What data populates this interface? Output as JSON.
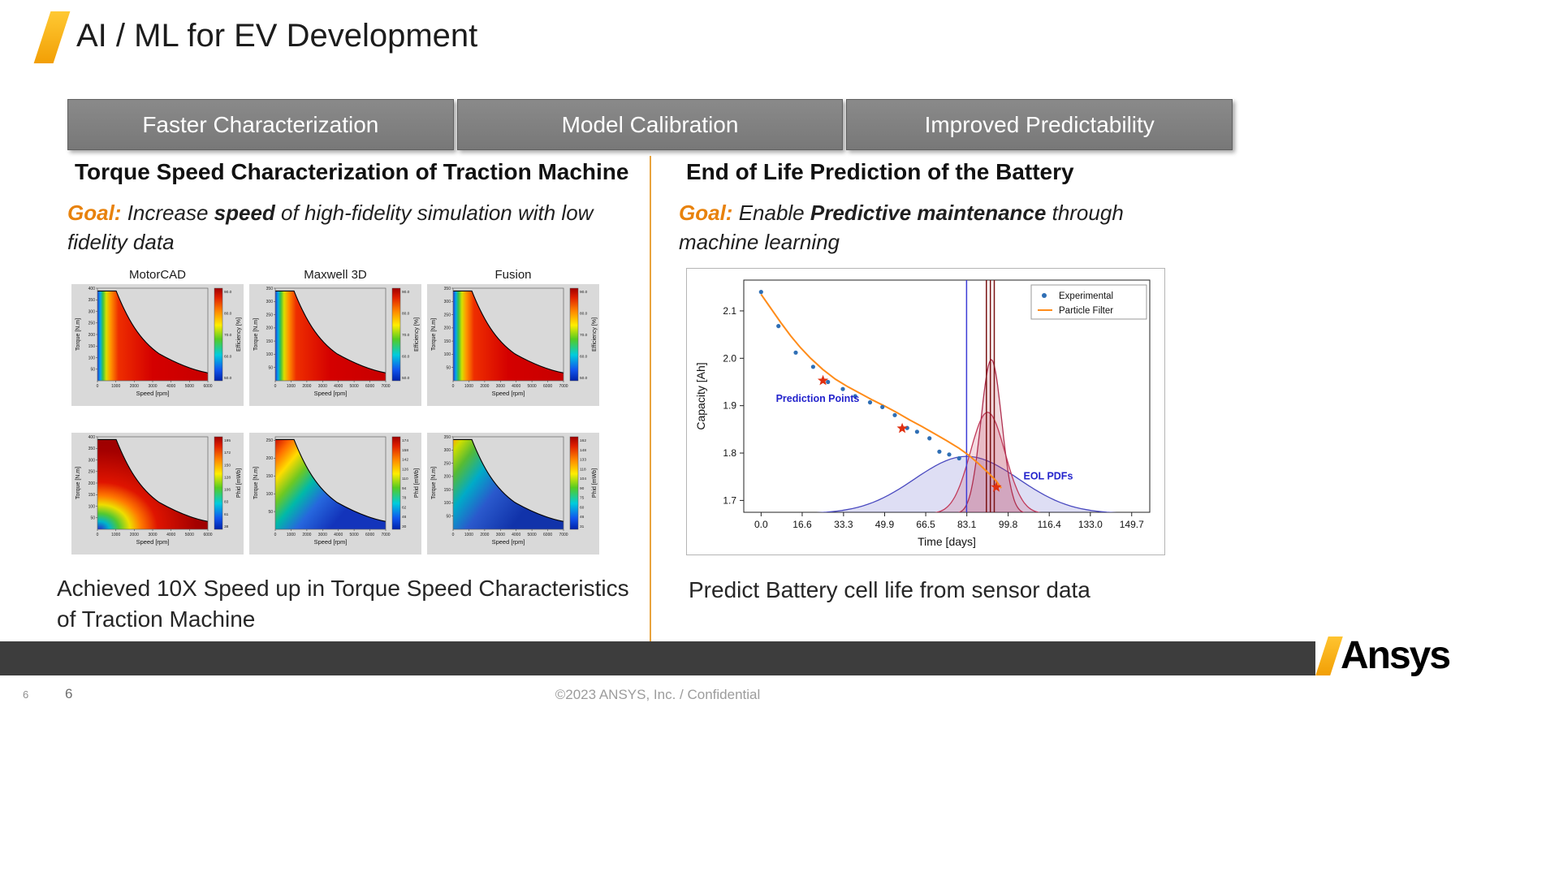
{
  "title": "AI / ML for EV Development",
  "tabs": [
    "Faster Characterization",
    "Model Calibration",
    "Improved Predictability"
  ],
  "left": {
    "heading": "Torque Speed Characterization of Traction Machine",
    "goal": {
      "label": "Goal:",
      "pre": "Increase",
      "emph": "speed",
      "post": "of high-fidelity simulation with low fidelity data"
    },
    "result": "Achieved 10X Speed up in Torque Speed Characteristics of Traction Machine"
  },
  "right": {
    "heading": "End of Life Prediction of the Battery",
    "goal": {
      "label": "Goal:",
      "pre": "Enable",
      "emph": "Predictive maintenance",
      "post": "through machine learning"
    },
    "result": "Predict Battery cell life from sensor data"
  },
  "footer": {
    "copyright": "©2023 ANSYS, Inc. / Confidential",
    "page_small": "6",
    "page_large": "6",
    "logo_text": "Ansys"
  },
  "accent_colors": {
    "ansys_gold": "#FFB71B",
    "goal_orange": "#E8820C",
    "tab_gray": "#7f7f7f",
    "footer_gray": "#3d3d3d"
  },
  "chart_data": [
    {
      "type": "line",
      "title": "",
      "xlabel": "Time [days]",
      "ylabel": "Capacity [Ah]",
      "xlim": [
        -7,
        157
      ],
      "ylim": [
        1.675,
        2.165
      ],
      "x_ticks": [
        "0.0",
        "16.6",
        "33.3",
        "49.9",
        "66.5",
        "83.1",
        "99.8",
        "116.4",
        "133.0",
        "149.7"
      ],
      "x_tick_values": [
        0,
        16.6,
        33.3,
        49.9,
        66.5,
        83.1,
        99.8,
        116.4,
        133.0,
        149.7
      ],
      "y_ticks": [
        "1.7",
        "1.8",
        "1.9",
        "2.0",
        "2.1"
      ],
      "y_tick_values": [
        1.7,
        1.8,
        1.9,
        2.0,
        2.1
      ],
      "grid": false,
      "legend_position": "upper right",
      "legend": [
        {
          "label": "Experimental",
          "marker": "dot",
          "color": "#2f6fb5"
        },
        {
          "label": "Particle Filter",
          "marker": "line",
          "color": "#ff8c1a"
        }
      ],
      "series": [
        {
          "name": "Experimental",
          "type": "scatter",
          "color": "#2f6fb5",
          "points": [
            [
              0,
              2.14
            ],
            [
              7,
              2.068
            ],
            [
              14,
              2.012
            ],
            [
              21,
              1.982
            ],
            [
              27,
              1.95
            ],
            [
              33,
              1.935
            ],
            [
              38,
              1.92
            ],
            [
              44,
              1.907
            ],
            [
              49,
              1.897
            ],
            [
              54,
              1.88
            ],
            [
              59,
              1.853
            ],
            [
              63,
              1.845
            ],
            [
              68,
              1.831
            ],
            [
              72,
              1.803
            ],
            [
              76,
              1.797
            ],
            [
              80,
              1.789
            ]
          ]
        },
        {
          "name": "Particle Filter",
          "type": "line",
          "color": "#ff8c1a",
          "points": [
            [
              0,
              2.135
            ],
            [
              4,
              2.105
            ],
            [
              8,
              2.075
            ],
            [
              12,
              2.047
            ],
            [
              16,
              2.022
            ],
            [
              20,
              2.0
            ],
            [
              25,
              1.976
            ],
            [
              30,
              1.956
            ],
            [
              35,
              1.94
            ],
            [
              40,
              1.926
            ],
            [
              45,
              1.912
            ],
            [
              50,
              1.899
            ],
            [
              55,
              1.885
            ],
            [
              60,
              1.87
            ],
            [
              65,
              1.856
            ],
            [
              70,
              1.841
            ],
            [
              75,
              1.826
            ],
            [
              80,
              1.81
            ],
            [
              84,
              1.795
            ],
            [
              88,
              1.777
            ],
            [
              92,
              1.757
            ],
            [
              95,
              1.741
            ],
            [
              97,
              1.726
            ]
          ]
        }
      ],
      "prediction_points": [
        [
          25,
          1.953
        ],
        [
          57,
          1.852
        ],
        [
          95,
          1.728
        ]
      ],
      "vlines": [
        {
          "x": 83,
          "color": "#3b3bd6",
          "width": 1.5
        },
        {
          "x": 91,
          "color": "#7a1212",
          "width": 1.5
        },
        {
          "x": 92.6,
          "color": "#7a1212",
          "width": 1.5
        },
        {
          "x": 94.2,
          "color": "#7a1212",
          "width": 1.5
        }
      ],
      "pdfs": [
        {
          "center": 83,
          "sigma": 21,
          "peak": 1.793,
          "base": 1.672,
          "color": "#4a4ac0"
        },
        {
          "center": 91.5,
          "sigma": 7,
          "peak": 1.886,
          "base": 1.672,
          "color": "#c23a5a"
        },
        {
          "center": 93,
          "sigma": 4.2,
          "peak": 1.997,
          "base": 1.672,
          "color": "#b03050"
        }
      ],
      "annotations": [
        {
          "text": "Prediction Points",
          "x": 6,
          "y": 1.908,
          "color": "#2323cc"
        },
        {
          "text": "EOL PDFs",
          "x": 106,
          "y": 1.744,
          "color": "#2323cc"
        }
      ]
    },
    {
      "type": "heatmap",
      "name": "torque-speed-maps",
      "xlabel": "Speed [rpm]",
      "ylabel": "Torque [N.m]",
      "plots": [
        {
          "title": "MotorCAD",
          "x_max": 6000,
          "x_step": 1000,
          "y_max": 400,
          "y_step": 50,
          "cb_label": "Efficiency [%]",
          "cb_ticks": [
            "90.0",
            "80.0",
            "70.0",
            "60.0",
            "50.0"
          ],
          "fill": "eff_left"
        },
        {
          "title": "Maxwell 3D",
          "x_max": 7000,
          "x_step": 1000,
          "y_max": 350,
          "y_step": 50,
          "cb_label": "Efficiency [%]",
          "cb_ticks": [
            "90.0",
            "80.0",
            "70.0",
            "60.0",
            "50.0"
          ],
          "fill": "eff_left"
        },
        {
          "title": "Fusion",
          "x_max": 7000,
          "x_step": 1000,
          "y_max": 350,
          "y_step": 50,
          "cb_label": "Efficiency [%]",
          "cb_ticks": [
            "90.0",
            "80.0",
            "70.0",
            "60.0",
            "50.0"
          ],
          "fill": "eff_left"
        },
        {
          "title": "",
          "x_max": 6000,
          "x_step": 1000,
          "y_max": 400,
          "y_step": 50,
          "cb_label": "Phid [mWb]",
          "cb_ticks": [
            "195",
            "172",
            "150",
            "128",
            "106",
            "83",
            "61",
            "38"
          ],
          "fill": "flux_dark"
        },
        {
          "title": "",
          "x_max": 7000,
          "x_step": 1000,
          "y_max": 260,
          "y_step": 50,
          "cb_label": "Phid [mWb]",
          "cb_ticks": [
            "174",
            "158",
            "142",
            "126",
            "110",
            "94",
            "78",
            "62",
            "46",
            "30"
          ],
          "fill": "flux_diag"
        },
        {
          "title": "",
          "x_max": 7000,
          "x_step": 1000,
          "y_max": 350,
          "y_step": 50,
          "cb_label": "Phid [mWb]",
          "cb_ticks": [
            "162",
            "148",
            "133",
            "118",
            "104",
            "90",
            "75",
            "60",
            "46",
            "31"
          ],
          "fill": "flux_cool"
        }
      ]
    }
  ]
}
